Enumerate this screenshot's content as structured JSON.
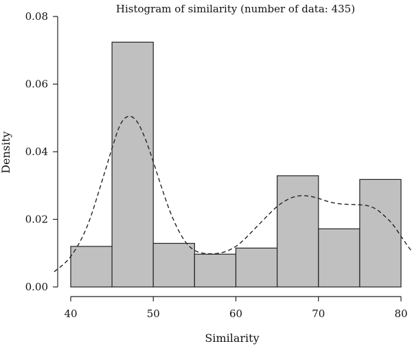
{
  "chart_data": {
    "type": "bar",
    "title": "Histogram of similarity (number of data: 435)",
    "xlabel": "Similarity",
    "ylabel": "Density",
    "xlim": [
      40,
      80
    ],
    "ylim": [
      0,
      0.08
    ],
    "x_ticks": [
      40,
      50,
      60,
      70,
      80
    ],
    "y_ticks": [
      "0.00",
      "0.02",
      "0.04",
      "0.06",
      "0.08"
    ],
    "bins": [
      {
        "start": 40,
        "end": 45,
        "density": 0.012
      },
      {
        "start": 45,
        "end": 50,
        "density": 0.0724
      },
      {
        "start": 50,
        "end": 55,
        "density": 0.0129
      },
      {
        "start": 55,
        "end": 60,
        "density": 0.0097
      },
      {
        "start": 60,
        "end": 65,
        "density": 0.0115
      },
      {
        "start": 65,
        "end": 70,
        "density": 0.0329
      },
      {
        "start": 70,
        "end": 75,
        "density": 0.0172
      },
      {
        "start": 75,
        "end": 80,
        "density": 0.0318
      }
    ],
    "density_curve": {
      "style": "dashed",
      "x": [
        38,
        40,
        42,
        44,
        45,
        46,
        47,
        48,
        49,
        50,
        51,
        52,
        53,
        54,
        55,
        56,
        57,
        58,
        59,
        60,
        61,
        62,
        63,
        64,
        65,
        66,
        67,
        68,
        69,
        70,
        71,
        72,
        73,
        74,
        75,
        76,
        77,
        78,
        79,
        80,
        81,
        82
      ],
      "y": [
        0.0045,
        0.009,
        0.018,
        0.033,
        0.041,
        0.048,
        0.0505,
        0.049,
        0.044,
        0.037,
        0.0295,
        0.0225,
        0.017,
        0.013,
        0.0108,
        0.01,
        0.0098,
        0.01,
        0.0107,
        0.012,
        0.014,
        0.0165,
        0.019,
        0.0215,
        0.0238,
        0.0255,
        0.0266,
        0.027,
        0.0268,
        0.0262,
        0.0254,
        0.0248,
        0.0245,
        0.0244,
        0.0243,
        0.024,
        0.023,
        0.021,
        0.0185,
        0.015,
        0.0115,
        0.0085
      ]
    },
    "grid": false,
    "legend": "none"
  }
}
